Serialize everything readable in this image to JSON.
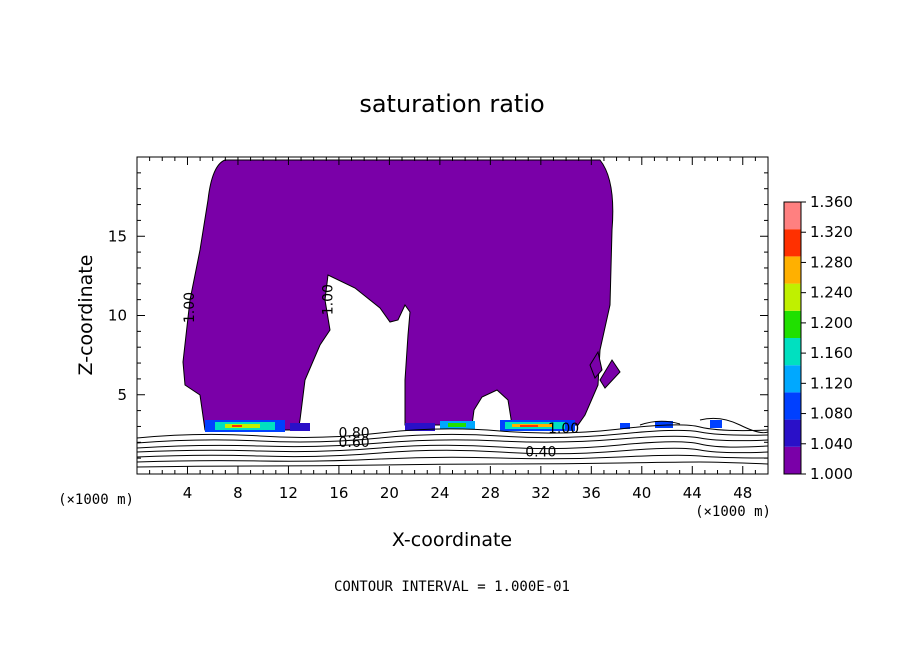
{
  "chart_data": {
    "type": "heatmap",
    "title": "saturation ratio",
    "xlabel": "X-coordinate",
    "ylabel": "Z-coordinate",
    "xlim": [
      0,
      50
    ],
    "ylim": [
      0,
      20
    ],
    "x_ticks": [
      4,
      8,
      12,
      16,
      20,
      24,
      28,
      32,
      36,
      40,
      44,
      48
    ],
    "y_ticks": [
      5,
      10,
      15
    ],
    "x_unit": "(×1000 m)",
    "y_unit": "(×1000 m)",
    "colorbar": {
      "min": 1.0,
      "max": 1.36,
      "ticks": [
        "1.000",
        "1.040",
        "1.080",
        "1.120",
        "1.160",
        "1.200",
        "1.240",
        "1.280",
        "1.320",
        "1.360"
      ],
      "colors": [
        "#7a00a8",
        "#2a10c8",
        "#0040ff",
        "#00a8ff",
        "#00e0c0",
        "#20e000",
        "#c0f000",
        "#ffb000",
        "#ff3000",
        "#ff8080"
      ]
    },
    "contour_labels": [
      {
        "text": "1.00",
        "x": 4.5,
        "z": 10.5,
        "rotate": -90
      },
      {
        "text": "1.00",
        "x": 15.5,
        "z": 11.0,
        "rotate": -90
      },
      {
        "text": "0.80",
        "x": 17.2,
        "z": 2.3,
        "rotate": 0
      },
      {
        "text": "0.60",
        "x": 17.2,
        "z": 1.7,
        "rotate": 0
      },
      {
        "text": "0.40",
        "x": 32.0,
        "z": 1.1,
        "rotate": 0
      },
      {
        "text": "1.00",
        "x": 33.8,
        "z": 2.6,
        "rotate": 0
      }
    ],
    "contour_interval_text": "CONTOUR INTERVAL = 1.000E-01"
  }
}
